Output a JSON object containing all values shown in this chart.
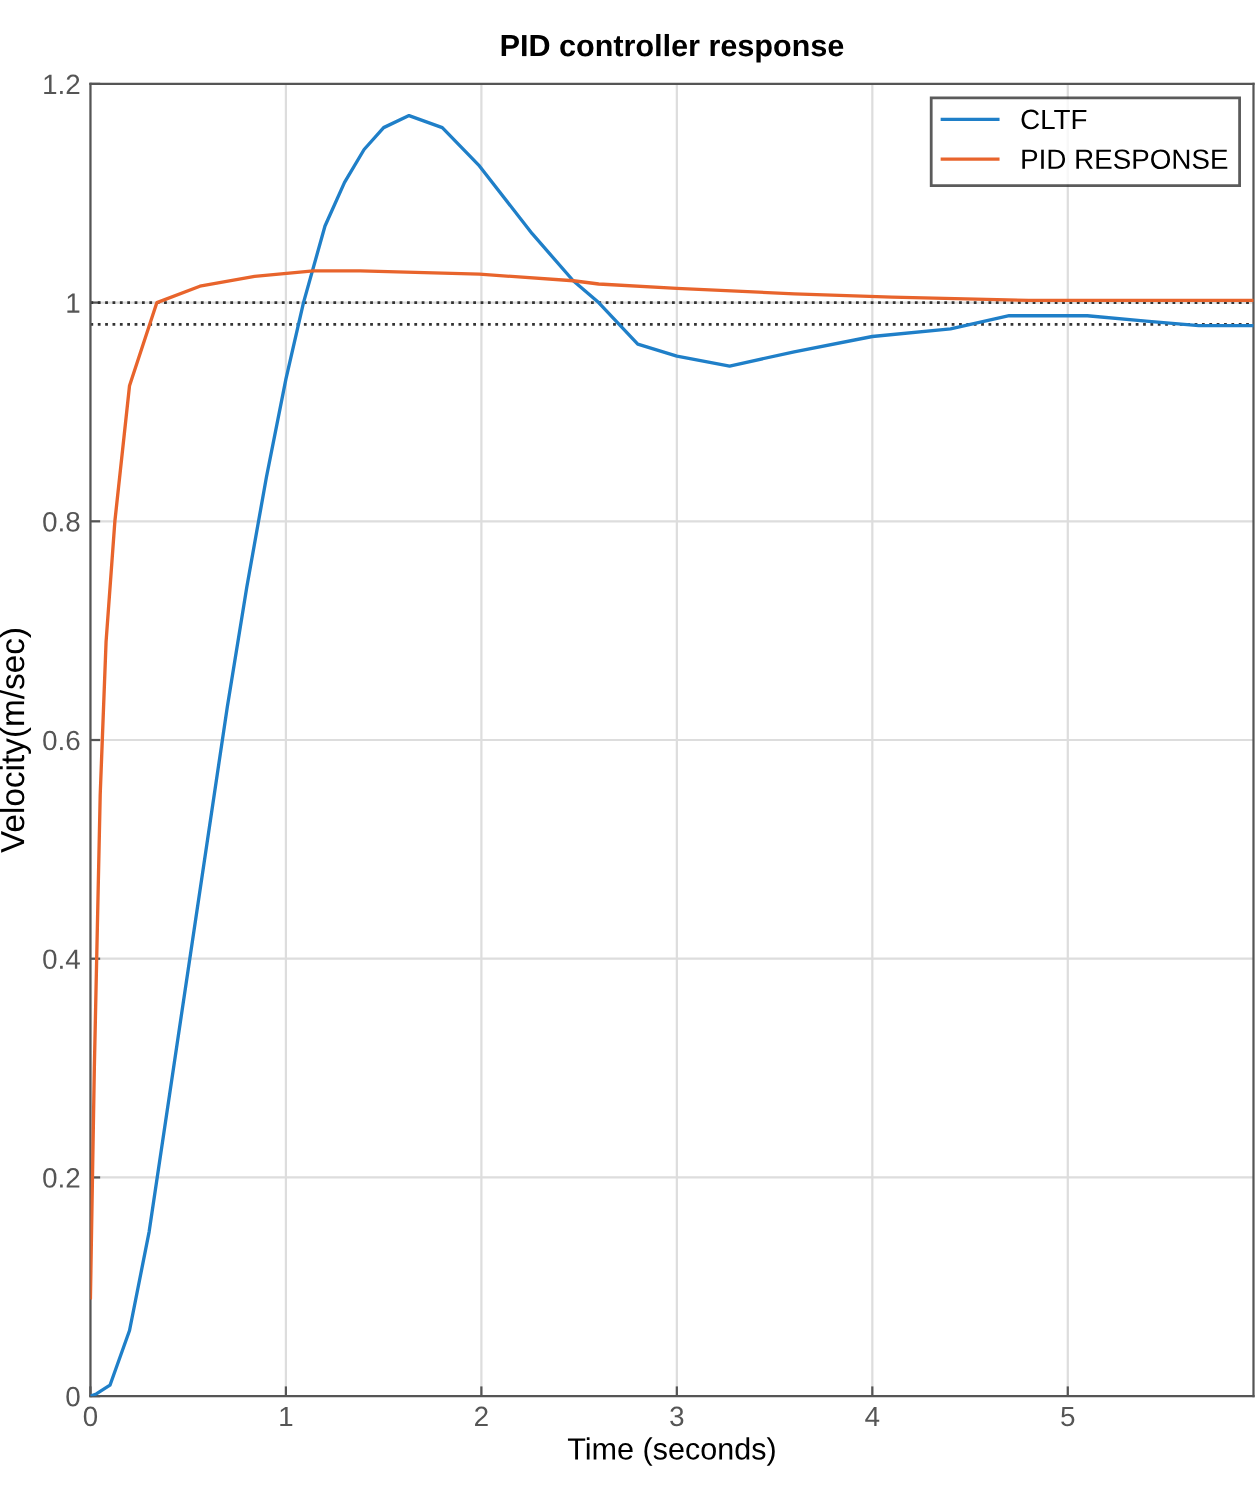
{
  "chart_data": {
    "type": "line",
    "title": "PID controller response",
    "xlabel": "Time (seconds)",
    "ylabel": "Velocity(m/sec)",
    "xlim": [
      0,
      5.95
    ],
    "xticks": [
      0,
      1,
      2,
      3,
      4,
      5
    ],
    "ylim": [
      0,
      1.2
    ],
    "yticks": [
      0,
      0.2,
      0.4,
      0.6,
      0.8,
      1,
      1.2
    ],
    "grid": true,
    "legend": "top right",
    "marker": "none",
    "line_style": "solid",
    "series": [
      {
        "name": "CLTF",
        "color": "#1f7fc8",
        "x": [
          0,
          0.03,
          0.1,
          0.2,
          0.3,
          0.4,
          0.5,
          0.6,
          0.7,
          0.8,
          0.86,
          0.9,
          1.0,
          1.09,
          1.2,
          1.3,
          1.4,
          1.5,
          1.63,
          1.8,
          1.99,
          2.26,
          2.47,
          2.6,
          2.8,
          3.0,
          3.27,
          3.6,
          4.0,
          4.4,
          4.7,
          5.1,
          5.4,
          5.67,
          5.95
        ],
        "values": [
          0,
          0.002,
          0.01,
          0.06,
          0.15,
          0.27,
          0.39,
          0.51,
          0.63,
          0.74,
          0.8,
          0.84,
          0.93,
          1.0,
          1.07,
          1.11,
          1.14,
          1.16,
          1.171,
          1.16,
          1.125,
          1.063,
          1.02,
          1.0,
          0.962,
          0.951,
          0.942,
          0.955,
          0.969,
          0.976,
          0.988,
          0.988,
          0.983,
          0.979,
          0.979
        ]
      },
      {
        "name": "PID RESPONSE",
        "color": "#e8642c",
        "x": [
          0,
          0.02,
          0.05,
          0.08,
          0.125,
          0.2,
          0.34,
          0.56,
          0.84,
          1.14,
          1.38,
          1.99,
          2.47,
          2.6,
          3.0,
          3.6,
          4.1,
          4.8,
          5.95
        ],
        "values": [
          0.09,
          0.3,
          0.55,
          0.69,
          0.8,
          0.924,
          1.0,
          1.015,
          1.024,
          1.029,
          1.029,
          1.026,
          1.02,
          1.017,
          1.013,
          1.008,
          1.005,
          1.002,
          1.002
        ]
      }
    ],
    "ref_lines": [
      {
        "axis": "y",
        "value": 1,
        "color": "#333333",
        "line_style": "dotted"
      },
      {
        "axis": "y",
        "value": 0.98,
        "color": "#333333",
        "line_style": "dotted"
      }
    ]
  }
}
